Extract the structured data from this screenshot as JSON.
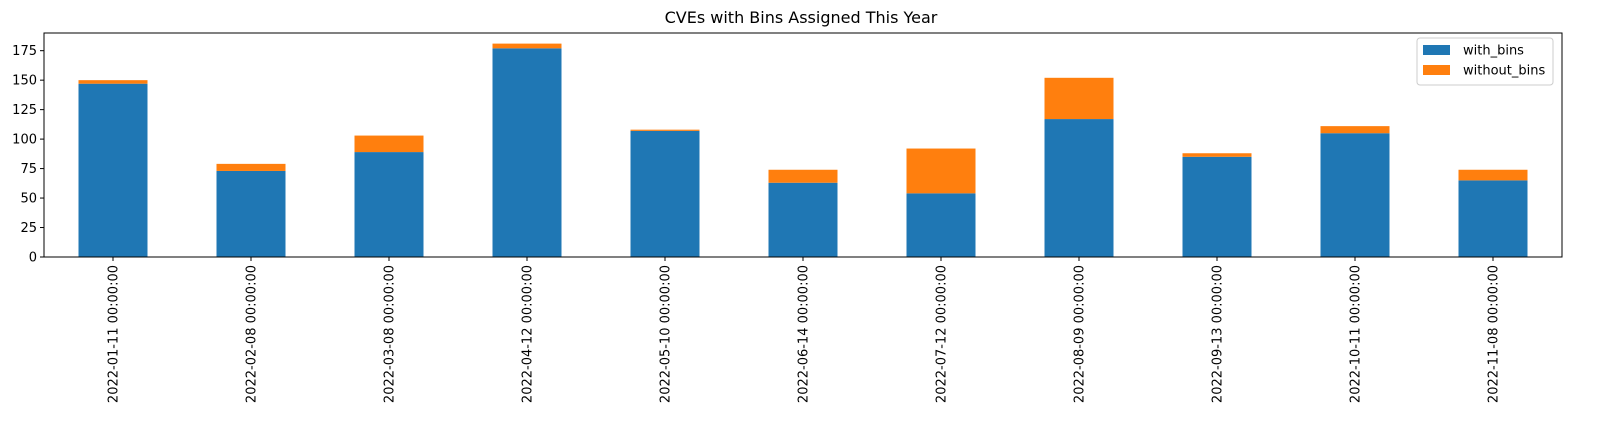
{
  "chart_data": {
    "type": "bar",
    "stacked": true,
    "title": "CVEs with Bins Assigned This Year",
    "xlabel": "",
    "ylabel": "",
    "categories": [
      "2022-01-11 00:00:00",
      "2022-02-08 00:00:00",
      "2022-03-08 00:00:00",
      "2022-04-12 00:00:00",
      "2022-05-10 00:00:00",
      "2022-06-14 00:00:00",
      "2022-07-12 00:00:00",
      "2022-08-09 00:00:00",
      "2022-09-13 00:00:00",
      "2022-10-11 00:00:00",
      "2022-11-08 00:00:00"
    ],
    "series": [
      {
        "name": "with_bins",
        "color": "#1f77b4",
        "values": [
          147,
          73,
          89,
          177,
          107,
          63,
          54,
          117,
          85,
          105,
          65
        ]
      },
      {
        "name": "without_bins",
        "color": "#ff7f0e",
        "values": [
          3,
          6,
          14,
          4,
          1,
          11,
          38,
          35,
          3,
          6,
          9
        ]
      }
    ],
    "ylim": [
      0,
      190
    ],
    "yticks": [
      0,
      25,
      50,
      75,
      100,
      125,
      150,
      175
    ],
    "grid": false,
    "legend_position": "top-right"
  }
}
